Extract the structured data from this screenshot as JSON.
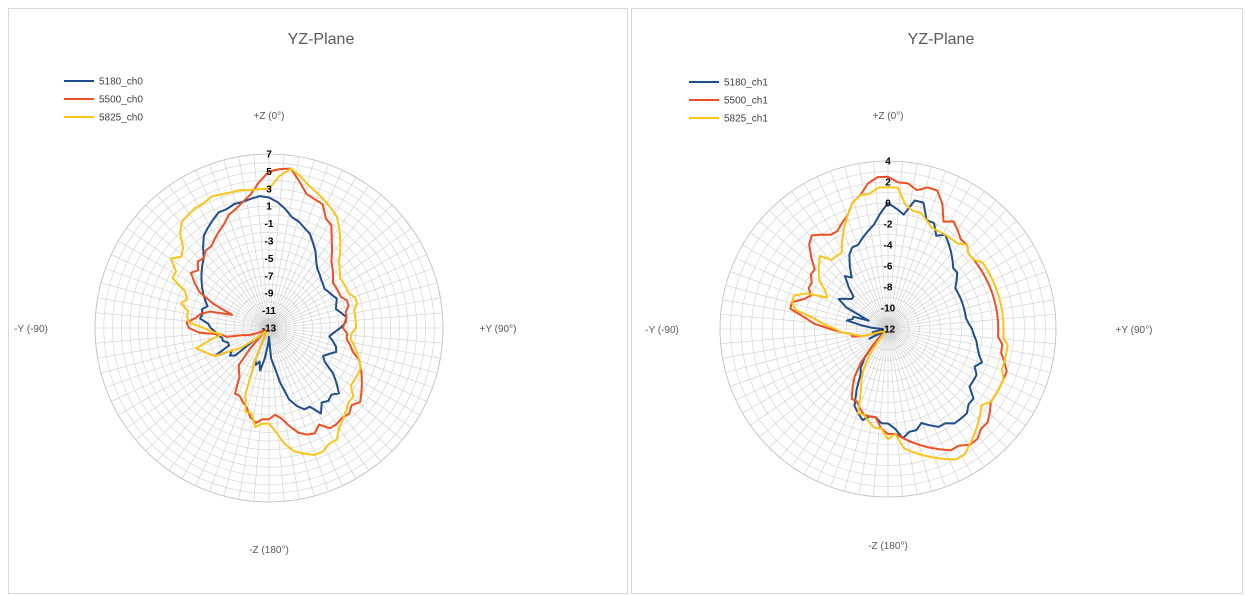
{
  "colors": {
    "5180": "#1f4e8c",
    "5500": "#f04e23",
    "5825": "#fcc419",
    "grid": "#d0d0d0",
    "spoke": "#cccccc"
  },
  "chart_data": [
    {
      "type": "radar",
      "title": "YZ-Plane",
      "direction_labels": {
        "top": "+Z (0°)",
        "right": "+Y (90°)",
        "bottom": "-Z (180°)",
        "left": "-Y (-90)"
      },
      "rmin": -13,
      "rmax": 7,
      "ring_step": 1,
      "tick_labels": [
        "7",
        "5",
        "3",
        "1",
        "-1",
        "-3",
        "-5",
        "-7",
        "-9",
        "-11",
        "-13"
      ],
      "tick_values": [
        7,
        5,
        3,
        1,
        -1,
        -3,
        -5,
        -7,
        -9,
        -11,
        -13
      ],
      "legend_position": "top-left",
      "angle_step_deg": 5,
      "series": [
        {
          "name": "5180_ch0",
          "color_key": "5180",
          "values": [
            2,
            1.5,
            0.8,
            0,
            -0.3,
            -0.8,
            -1.2,
            -2,
            -2.7,
            -3.6,
            -4.2,
            -4.5,
            -4.8,
            -5,
            -5.2,
            -5,
            -4.8,
            -4.5,
            -4.8,
            -5,
            -4.5,
            -4,
            -4.2,
            -4.8,
            -5.5,
            -6,
            -5.5,
            -5,
            -4.8,
            -5.5,
            -6,
            -5.5,
            -4,
            -3,
            -2,
            -2.5,
            -2.2,
            -2.5,
            -1.5,
            -2.8,
            -2.8,
            -3.5,
            -4.5,
            -6.5,
            -8.5,
            -9.5,
            -12,
            -11,
            -9.5,
            -8,
            -9,
            -8.5,
            -9,
            -12,
            -12.2,
            -12.5,
            -12.5,
            -12.5,
            -12.5,
            -8,
            -7.5,
            -8,
            -6,
            -8,
            -8,
            -7.5,
            -7.5,
            -7,
            -6.8,
            -6.3,
            -6,
            -5,
            -5.2,
            -5,
            -5.5,
            -5,
            -4.5,
            -4,
            -3.5,
            -3,
            -2.5,
            -2,
            -1,
            0,
            0.5,
            1,
            1.5,
            1.5,
            1.8,
            1.8,
            2,
            2.2
          ]
        },
        {
          "name": "5500_ch0",
          "color_key": "5500",
          "values": [
            5,
            5.3,
            5.5,
            4.2,
            3,
            2.7,
            2.5,
            1.2,
            0.8,
            -0.5,
            -1.5,
            -2.5,
            -3,
            -3.5,
            -4,
            -4,
            -4,
            -4,
            -3.5,
            -3.5,
            -4,
            -4,
            -4.3,
            -4.5,
            -4,
            -4,
            -3.5,
            -3,
            -2,
            -1.5,
            -1,
            -0.5,
            0,
            0.5,
            0,
            0.5,
            0.3,
            0.5,
            0.5,
            -0.5,
            0.2,
            0,
            -0.5,
            -1.5,
            -2.5,
            -3,
            -2.5,
            -2.5,
            -2,
            -2.5,
            -3.5,
            -4,
            -4.5,
            -4.5,
            -6.5,
            -7,
            -7.5,
            -10,
            -12,
            -12.5,
            -12.5,
            -12.5,
            -12.5,
            -11.5,
            -10.5,
            -10,
            -8,
            -7.5,
            -5,
            -3.8,
            -3.5,
            -4.5,
            -5,
            -6,
            -8.5,
            -6,
            -4,
            -3,
            -2,
            -2.5,
            -1.8,
            -2,
            -1.5,
            -1.5,
            -1,
            -0.5,
            0,
            0.8,
            1.2,
            1.8,
            2.5,
            3.8
          ]
        },
        {
          "name": "5825_ch0",
          "color_key": "5825",
          "values": [
            3,
            4.5,
            5.5,
            4.8,
            4,
            3.5,
            3,
            2.5,
            2,
            1,
            0,
            -1,
            -2,
            -2.5,
            -3,
            -3,
            -3,
            -3,
            -2.5,
            -2.5,
            -3,
            -3,
            -3,
            -3,
            -3.5,
            -3.5,
            -3,
            -2.5,
            -2,
            -1.5,
            -1.5,
            -1.5,
            -1.5,
            -0.5,
            -0.5,
            0,
            0.5,
            1,
            2,
            2,
            2.5,
            2.5,
            2,
            1.5,
            0.5,
            -1,
            -2,
            -2,
            -1.5,
            -3,
            -3,
            -5,
            -9,
            -12,
            -12.5,
            -12.5,
            -12.5,
            -12.5,
            -12,
            -11,
            -9,
            -8,
            -6,
            -5.5,
            -5,
            -4.3,
            -6,
            -7.5,
            -6.5,
            -5.5,
            -3.8,
            -3.5,
            -3.5,
            -2.5,
            -3,
            -2.5,
            -0.5,
            -0.5,
            0.8,
            0,
            0.5,
            2,
            2.8,
            3,
            3.2,
            3.2,
            3.5,
            3.3,
            3.2,
            3.2,
            3,
            3
          ]
        }
      ]
    },
    {
      "type": "radar",
      "title": "YZ-Plane",
      "direction_labels": {
        "top": "+Z (0°)",
        "right": "+Y (90°)",
        "bottom": "-Z (180°)",
        "left": "-Y (-90)"
      },
      "rmin": -12,
      "rmax": 4,
      "ring_step": 1,
      "tick_labels": [
        "4",
        "2",
        "0",
        "-2",
        "-4",
        "-6",
        "-8",
        "-10",
        "-12"
      ],
      "tick_values": [
        4,
        2,
        0,
        -2,
        -4,
        -6,
        -8,
        -10,
        -12
      ],
      "legend_position": "top-left",
      "angle_step_deg": 5,
      "series": [
        {
          "name": "5180_ch1",
          "color_key": "5180",
          "values": [
            0,
            -0.5,
            -1,
            0.5,
            0.5,
            -1,
            -1,
            -2,
            -1.5,
            -2,
            -2.5,
            -3,
            -3.5,
            -3.5,
            -4,
            -4.5,
            -4.5,
            -4.5,
            -4.5,
            -4.5,
            -4.5,
            -4.5,
            -4.3,
            -4,
            -3.8,
            -3.5,
            -3.3,
            -3,
            -2.5,
            -3,
            -2.5,
            -2.5,
            -2.5,
            -1.5,
            -1.5,
            -1,
            -1,
            -1,
            -1.5,
            -1.5,
            -2,
            -2.5,
            -2,
            -2,
            -1.5,
            -2.5,
            -3,
            -3,
            -3.5,
            -3.5,
            -3,
            -3.5,
            -4,
            -5.5,
            -7,
            -7.5,
            -8.5,
            -10,
            -11,
            -11.5,
            -11.5,
            -11.5,
            -10,
            -11.5,
            -11.5,
            -11.5,
            -10.5,
            -11.5,
            -11.5,
            -11.5,
            -10.5,
            -9.5,
            -8,
            -8.5,
            -8.5,
            -10,
            -7.5,
            -6.5,
            -7,
            -7.5,
            -7.5,
            -6.5,
            -5.5,
            -6,
            -5,
            -4,
            -3.5,
            -3.5,
            -3,
            -2.5,
            -2,
            -1
          ]
        },
        {
          "name": "5500_ch1",
          "color_key": "5500",
          "values": [
            2.5,
            2,
            2,
            1.5,
            2,
            2,
            1,
            -0.5,
            0,
            -0.5,
            -1,
            -1,
            -1.5,
            -1.5,
            -1.5,
            -1.5,
            -1.5,
            -1.5,
            -1.5,
            -1.5,
            -1.5,
            -1.5,
            -1.5,
            -1.5,
            -1.5,
            -1,
            -1,
            -0.5,
            0,
            0,
            0,
            0,
            0,
            0.5,
            1,
            1,
            1.5,
            1.5,
            1,
            1,
            0.5,
            0,
            -0.5,
            -1,
            -1.5,
            -2,
            -2,
            -2.5,
            -3.5,
            -3.5,
            -3.5,
            -4,
            -4.5,
            -4.5,
            -5.5,
            -6.5,
            -8,
            -10,
            -11.5,
            -11.5,
            -11.5,
            -11.5,
            -11.5,
            -11.5,
            -11,
            -9.5,
            -8.5,
            -8.5,
            -7.5,
            -6.5,
            -5,
            -4,
            -2.5,
            -2.5,
            -3.5,
            -4,
            -3.5,
            -3.5,
            -3,
            -3,
            -2,
            -1,
            -0.5,
            -1,
            -1.5,
            -1.5,
            -1,
            -0.5,
            0.5,
            1,
            2,
            2.5
          ]
        },
        {
          "name": "5825_ch1",
          "color_key": "5825",
          "values": [
            1.5,
            1.5,
            0,
            -0.5,
            -0.5,
            -1,
            -1.5,
            -1.5,
            -1.5,
            -1.5,
            -1.5,
            -1,
            -1.5,
            -1.5,
            -1,
            -1,
            -1,
            -1,
            -1,
            -1,
            -1,
            -1,
            -1,
            -1,
            -1,
            -0.5,
            -0.5,
            -0.5,
            -0.5,
            0,
            0,
            0,
            0,
            -0.5,
            0,
            0.5,
            1,
            1.5,
            2,
            2,
            1.5,
            1,
            0.5,
            0,
            -0.5,
            -2,
            -1.5,
            -2.5,
            -2.5,
            -3,
            -3.5,
            -3.5,
            -5.5,
            -6.5,
            -7.5,
            -9,
            -10.5,
            -11.5,
            -11.5,
            -11.5,
            -11.5,
            -11.5,
            -11.5,
            -11.5,
            -11,
            -9.5,
            -9,
            -8.5,
            -7.5,
            -7,
            -6,
            -5,
            -3,
            -2.5,
            -2.5,
            -3.5,
            -5.5,
            -5,
            -4,
            -3.5,
            -3,
            -2.5,
            -3.5,
            -3.5,
            -3.5,
            -2.5,
            -1.5,
            -0.5,
            0.5,
            1,
            1,
            1.5
          ]
        }
      ]
    }
  ]
}
